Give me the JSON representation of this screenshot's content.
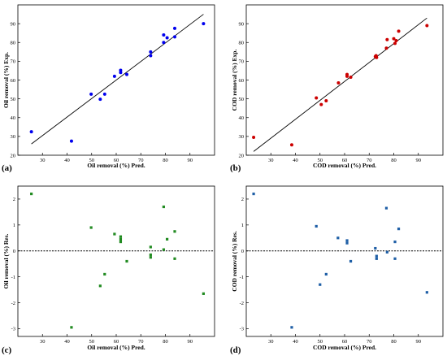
{
  "figure": {
    "colors": {
      "blue": "#0000ee",
      "red": "#cc0000",
      "green": "#228b22",
      "steel_blue": "#1f5fa6"
    }
  },
  "chart_data": [
    {
      "panel": "(a)",
      "type": "scatter",
      "marker": "circle",
      "color": "#0000ee",
      "xlabel": "Oil removal (%) Pred.",
      "ylabel": "Oil removal (%) Exp.",
      "xlim": [
        20,
        100
      ],
      "ylim": [
        20,
        100
      ],
      "xticks": [
        30,
        40,
        50,
        60,
        70,
        80,
        90
      ],
      "yticks": [
        20,
        30,
        40,
        50,
        60,
        70,
        80,
        90
      ],
      "fit_line": {
        "x": [
          25.5,
          95.5
        ],
        "y": [
          26,
          95
        ]
      },
      "x": [
        25.5,
        41.8,
        49.8,
        53.5,
        55.3,
        59.3,
        61.8,
        61.8,
        64.3,
        74,
        74,
        79.3,
        79.3,
        80.7,
        83.8,
        83.8,
        95.5
      ],
      "y": [
        32.5,
        27.5,
        52.5,
        49.8,
        52.5,
        62,
        64,
        65.2,
        63,
        75,
        73,
        84,
        80,
        82.5,
        87.5,
        83,
        90
      ]
    },
    {
      "panel": "(b)",
      "type": "scatter",
      "marker": "circle",
      "color": "#cc0000",
      "xlabel": "COD removal (%) Pred.",
      "ylabel": "COD removal (%) Exp.",
      "xlim": [
        20,
        100
      ],
      "ylim": [
        20,
        100
      ],
      "xticks": [
        30,
        40,
        50,
        60,
        70,
        80,
        90
      ],
      "yticks": [
        20,
        30,
        40,
        50,
        60,
        70,
        80,
        90
      ],
      "fit_line": {
        "x": [
          23,
          93.5
        ],
        "y": [
          22,
          93
        ]
      },
      "x": [
        23,
        38.5,
        48.5,
        50.5,
        52.5,
        57.5,
        61,
        61,
        62.5,
        72.5,
        72.8,
        73,
        77,
        77.3,
        80,
        80.5,
        81,
        82,
        93.5
      ],
      "y": [
        29.5,
        25.5,
        50.5,
        47,
        49,
        58.5,
        62,
        63,
        61.5,
        72.5,
        73,
        72,
        77,
        81.5,
        82,
        79.5,
        81,
        86,
        89
      ]
    },
    {
      "panel": "(c)",
      "type": "scatter",
      "marker": "square",
      "color": "#228b22",
      "xlabel": "Oil removal (%) Pred.",
      "ylabel": "Oil removal (%) Res.",
      "xlim": [
        20,
        100
      ],
      "ylim": [
        -3.3,
        2.5
      ],
      "xticks": [
        30,
        40,
        50,
        60,
        70,
        80,
        90
      ],
      "yticks": [
        -3,
        -2,
        -1,
        0,
        1,
        2
      ],
      "zero_line": 0,
      "x": [
        25.5,
        41.8,
        49.8,
        53.5,
        55.3,
        59.3,
        61.8,
        61.8,
        61.8,
        64.3,
        74,
        74,
        74,
        79.3,
        79.3,
        80.7,
        83.8,
        83.8,
        95.5
      ],
      "y": [
        2.2,
        -2.95,
        0.9,
        -1.35,
        -0.9,
        0.65,
        0.55,
        0.45,
        0.35,
        -0.4,
        0.15,
        -0.15,
        -0.25,
        1.7,
        0.05,
        0.45,
        0.75,
        -0.3,
        -1.65
      ]
    },
    {
      "panel": "(d)",
      "type": "scatter",
      "marker": "square",
      "color": "#1f5fa6",
      "xlabel": "COD removal (%) Pred.",
      "ylabel": "COD removal (%) Res.",
      "xlim": [
        20,
        100
      ],
      "ylim": [
        -3.3,
        2.5
      ],
      "xticks": [
        30,
        40,
        50,
        60,
        70,
        80,
        90
      ],
      "yticks": [
        -3,
        -2,
        -1,
        0,
        1,
        2
      ],
      "zero_line": 0,
      "x": [
        23,
        38.5,
        48.5,
        50,
        52.5,
        57.3,
        61,
        61,
        62.5,
        72.5,
        73,
        73,
        77,
        77.3,
        80.5,
        80.5,
        82,
        93.5
      ],
      "y": [
        2.2,
        -2.95,
        0.95,
        -1.3,
        -0.9,
        0.5,
        0.4,
        0.3,
        -0.4,
        0.1,
        -0.2,
        -0.3,
        1.65,
        -0.05,
        0.35,
        -0.3,
        0.85,
        -1.6
      ]
    }
  ]
}
